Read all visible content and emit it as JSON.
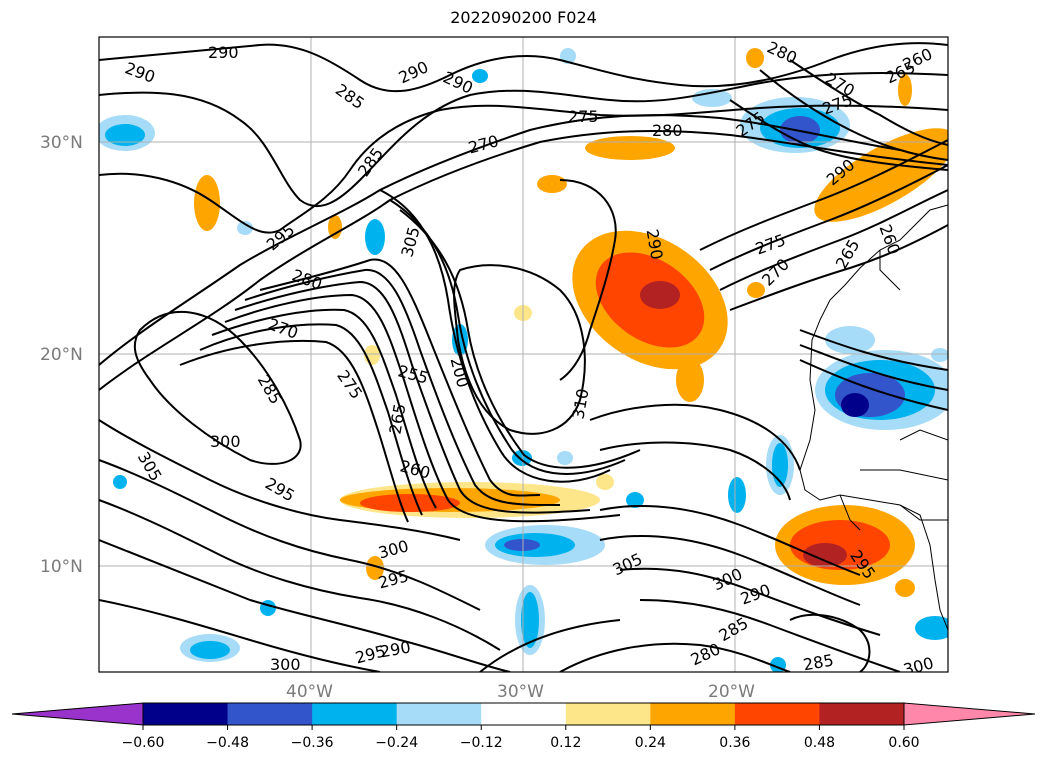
{
  "title": "2022090200 F024",
  "map": {
    "lon_labels": [
      "40°W",
      "30°W",
      "20°W"
    ],
    "lat_labels": [
      "30°N",
      "20°N",
      "10°N"
    ],
    "contour_labels": [
      "290",
      "290",
      "290",
      "285",
      "290",
      "285",
      "270",
      "275",
      "280",
      "280",
      "260",
      "270",
      "275",
      "265",
      "290",
      "295",
      "305",
      "280",
      "270",
      "255",
      "200",
      "275",
      "285",
      "265",
      "260",
      "300",
      "310",
      "290",
      "275",
      "270",
      "265",
      "260",
      "295",
      "305",
      "300",
      "295",
      "305",
      "300",
      "290",
      "285",
      "280",
      "285",
      "295",
      "290",
      "300",
      "300",
      "295",
      "275"
    ]
  },
  "colorbar": {
    "tick_labels": [
      "−0.60",
      "−0.48",
      "−0.36",
      "−0.24",
      "−0.12",
      "0.12",
      "0.24",
      "0.36",
      "0.48",
      "0.60"
    ],
    "colors": [
      "#9933cc",
      "#00008b",
      "#3355cc",
      "#00b2ee",
      "#a6dcf7",
      "#ffffff",
      "#fde68a",
      "#ffa500",
      "#ff4500",
      "#b22222",
      "#ff88aa"
    ]
  }
}
